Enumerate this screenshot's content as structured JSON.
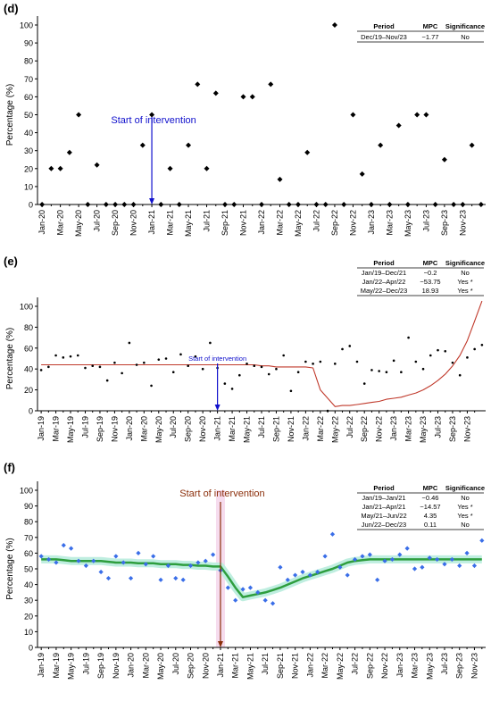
{
  "chart_data": [
    {
      "panel": "(d)",
      "type": "scatter",
      "ylabel": "Percentage (%)",
      "ylim": [
        0,
        100
      ],
      "yticks": [
        0,
        10,
        20,
        30,
        40,
        50,
        60,
        70,
        80,
        90,
        100
      ],
      "xticks": [
        "Jan-20",
        "Mar-20",
        "May-20",
        "Jul-20",
        "Sep-20",
        "Nov-20",
        "Jan-21",
        "Mar-21",
        "May-21",
        "Jul-21",
        "Sep-21",
        "Nov-21",
        "Jan-22",
        "Mar-22",
        "May-22",
        "Jul-22",
        "Sep-22",
        "Nov-22",
        "Jan-23",
        "Mar-23",
        "May-23",
        "Jul-23",
        "Sep-23",
        "Nov-23"
      ],
      "values": [
        0,
        20,
        20,
        29,
        50,
        0,
        22,
        0,
        0,
        0,
        0,
        33,
        50,
        0,
        20,
        0,
        33,
        67,
        20,
        62,
        0,
        0,
        60,
        60,
        0,
        67,
        14,
        0,
        0,
        29,
        0,
        0,
        100,
        0,
        50,
        17,
        0,
        33,
        0,
        44,
        0,
        50,
        50,
        0,
        25,
        0,
        0,
        33,
        0
      ],
      "intervention": {
        "label": "Start of intervention",
        "index": 12
      },
      "table": {
        "headers": [
          "Period",
          "MPC",
          "Significance"
        ],
        "rows": [
          [
            "Dec/19–Nov/23",
            "−1.77",
            "No"
          ]
        ]
      }
    },
    {
      "panel": "(e)",
      "type": "scatter",
      "ylabel": "Percentage (%)",
      "ylim": [
        0,
        100
      ],
      "yticks": [
        0,
        20,
        40,
        60,
        80,
        100
      ],
      "xticks": [
        "Jan-19",
        "Mar-19",
        "May-19",
        "Jul-19",
        "Sep-19",
        "Nov-19",
        "Jan-20",
        "Mar-20",
        "May-20",
        "Jul-20",
        "Sep-20",
        "Nov-20",
        "Jan-21",
        "Mar-21",
        "May-21",
        "Jul-21",
        "Sep-21",
        "Nov-21",
        "Jan-22",
        "Mar-22",
        "May-22",
        "Jul-22",
        "Sep-22",
        "Nov-22",
        "Jan-23",
        "Mar-23",
        "May-23",
        "Jul-23",
        "Sep-23",
        "Nov-23"
      ],
      "values": [
        39,
        42,
        53,
        51,
        52,
        53,
        41,
        43,
        42,
        29,
        46,
        36,
        65,
        44,
        46,
        24,
        49,
        50,
        37,
        54,
        43,
        52,
        40,
        65,
        41,
        26,
        21,
        34,
        45,
        43,
        42,
        35,
        40,
        53,
        19,
        37,
        47,
        45,
        47,
        0,
        45,
        59,
        62,
        47,
        26,
        39,
        38,
        37,
        48,
        37,
        70,
        47,
        40,
        53,
        58,
        57,
        46,
        34,
        51,
        59,
        63
      ],
      "trend": [
        44,
        44,
        44,
        44,
        44,
        44,
        44,
        44,
        44,
        44,
        44,
        44,
        44,
        44,
        44,
        44,
        44,
        44,
        44,
        44,
        44,
        44,
        44,
        44,
        44,
        44,
        44,
        44,
        44,
        44,
        43,
        43,
        42,
        42,
        42,
        42,
        42,
        41,
        20,
        12,
        4,
        5,
        5,
        6,
        7,
        8,
        9,
        11,
        12,
        13,
        15,
        17,
        20,
        24,
        29,
        35,
        43,
        53,
        67,
        86,
        105
      ],
      "intervention": {
        "label": "Start of intervention",
        "index": 24
      },
      "table": {
        "headers": [
          "Period",
          "MPC",
          "Significance"
        ],
        "rows": [
          [
            "Jan/19–Dec/21",
            "−0.2",
            "No"
          ],
          [
            "Jan/22–Apr/22",
            "−53.75",
            "Yes *"
          ],
          [
            "May/22–Dec/23",
            "18.93",
            "Yes *"
          ]
        ]
      }
    },
    {
      "panel": "(f)",
      "type": "scatter",
      "ylabel": "Percentage (%)",
      "ylim": [
        0,
        100
      ],
      "yticks": [
        0,
        10,
        20,
        30,
        40,
        50,
        60,
        70,
        80,
        90,
        100
      ],
      "xticks": [
        "Jan-19",
        "Mar-19",
        "May-19",
        "Jul-19",
        "Sep-19",
        "Nov-19",
        "Jan-20",
        "Mar-20",
        "May-20",
        "Jul-20",
        "Sep-20",
        "Nov-20",
        "Jan-21",
        "Mar-21",
        "May-21",
        "Jul-21",
        "Sep-21",
        "Nov-21",
        "Jan-22",
        "Mar-22",
        "May-22",
        "Jul-22",
        "Sep-22",
        "Nov-22",
        "Jan-23",
        "Mar-23",
        "May-23",
        "Jul-23",
        "Sep-23",
        "Nov-23"
      ],
      "values": [
        58,
        56,
        54,
        65,
        63,
        55,
        52,
        55,
        48,
        44,
        58,
        54,
        44,
        60,
        53,
        58,
        43,
        52,
        44,
        43,
        52,
        54,
        55,
        59,
        49,
        38,
        30,
        37,
        38,
        35,
        30,
        28,
        51,
        43,
        46,
        48,
        46,
        48,
        58,
        72,
        51,
        46,
        56,
        58,
        59,
        43,
        55,
        56,
        59,
        63,
        50,
        51,
        57,
        56,
        53,
        56,
        52,
        60,
        52,
        68
      ],
      "trend": [
        56,
        56,
        56,
        55.5,
        55,
        55,
        55,
        55,
        55,
        54.5,
        54,
        54,
        54,
        53.5,
        53.5,
        53.5,
        53,
        53,
        53,
        52.5,
        52.5,
        52,
        52,
        51.5,
        51.5,
        45,
        38,
        32,
        33,
        34,
        35,
        36.5,
        38,
        40,
        42,
        44,
        45.5,
        47,
        48.5,
        50,
        52,
        54,
        55,
        55.5,
        56,
        56,
        56,
        56,
        56,
        56,
        56,
        56,
        56,
        56,
        56,
        56,
        56,
        56,
        56,
        56
      ],
      "intervention": {
        "label": "Start of intervention",
        "index": 24
      },
      "table": {
        "headers": [
          "Period",
          "MPC",
          "Significance"
        ],
        "rows": [
          [
            "Jan/19–Jan/21",
            "−0.46",
            "No"
          ],
          [
            "Jan/21–Apr/21",
            "−14.57",
            "Yes *"
          ],
          [
            "May/21–Jun/22",
            "4.35",
            "Yes *"
          ],
          [
            "Jun/22–Dec/23",
            "0.11",
            "No"
          ]
        ]
      }
    }
  ]
}
